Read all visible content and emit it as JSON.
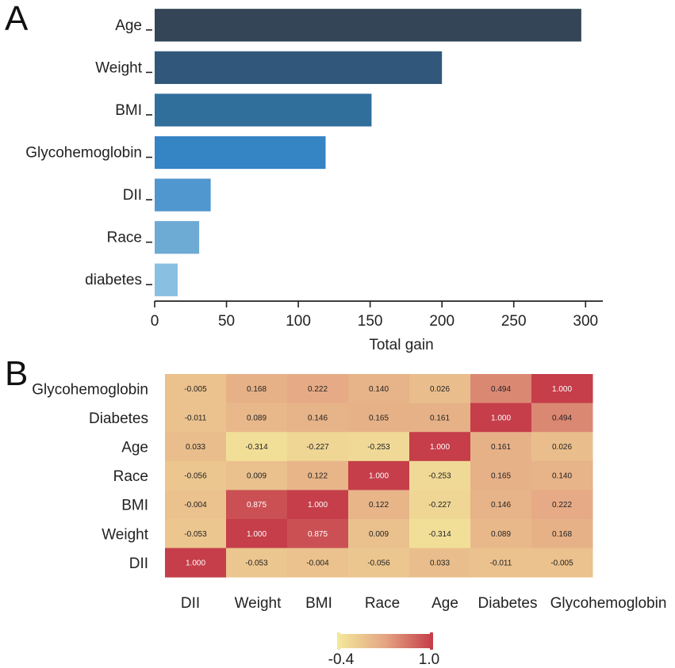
{
  "panels": {
    "a_label": "A",
    "b_label": "B"
  },
  "chart_data": [
    {
      "type": "bar",
      "orientation": "horizontal",
      "categories": [
        "Age",
        "Weight",
        "BMI",
        "Glycohemoglobin",
        "DII",
        "Race",
        "diabetes"
      ],
      "values": [
        297,
        200,
        151,
        119,
        39,
        31,
        16
      ],
      "xlabel": "Total gain",
      "ylabel": "",
      "xlim": [
        0,
        312
      ],
      "xticks": [
        0,
        50,
        100,
        150,
        200,
        250,
        300
      ],
      "xtick_labels": [
        "0",
        "50",
        "100",
        "150",
        "200",
        "250",
        "300"
      ],
      "colors": [
        "#334556",
        "#31587a",
        "#306f9c",
        "#3584c4",
        "#5097cf",
        "#6dabd5",
        "#89bfe1"
      ],
      "grid": false
    },
    {
      "type": "heatmap",
      "x_labels": [
        "DII",
        "Weight",
        "BMI",
        "Race",
        "Age",
        "Diabetes",
        "Glycohemoglobin"
      ],
      "y_labels": [
        "Glycohemoglobin",
        "Diabetes",
        "Age",
        "Race",
        "BMI",
        "Weight",
        "DII"
      ],
      "cell_labels": [
        [
          "-0.005",
          "0.168",
          "0.222",
          "0.140",
          "0.026",
          "0.494",
          "1.000"
        ],
        [
          "-0.011",
          "0.089",
          "0.146",
          "0.165",
          "0.161",
          "1.000",
          "0.494"
        ],
        [
          "0.033",
          "-0.314",
          "-0.227",
          "-0.253",
          "1.000",
          "0.161",
          "0.026"
        ],
        [
          "-0.056",
          "0.009",
          "0.122",
          "1.000",
          "-0.253",
          "0.165",
          "0.140"
        ],
        [
          "-0.004",
          "0.875",
          "1.000",
          "0.122",
          "-0.227",
          "0.146",
          "0.222"
        ],
        [
          "-0.053",
          "1.000",
          "0.875",
          "0.009",
          "-0.314",
          "0.089",
          "0.168"
        ],
        [
          "1.000",
          "-0.053",
          "-0.004",
          "-0.056",
          "0.033",
          "-0.011",
          "-0.005"
        ]
      ],
      "colorbar": {
        "min": -0.4,
        "max": 1.0,
        "min_label": "-0.4",
        "max_label": "1.0",
        "low_color": "#f3e79b",
        "mid_color": "#e4a483",
        "high_color": "#c53e4a"
      }
    }
  ]
}
